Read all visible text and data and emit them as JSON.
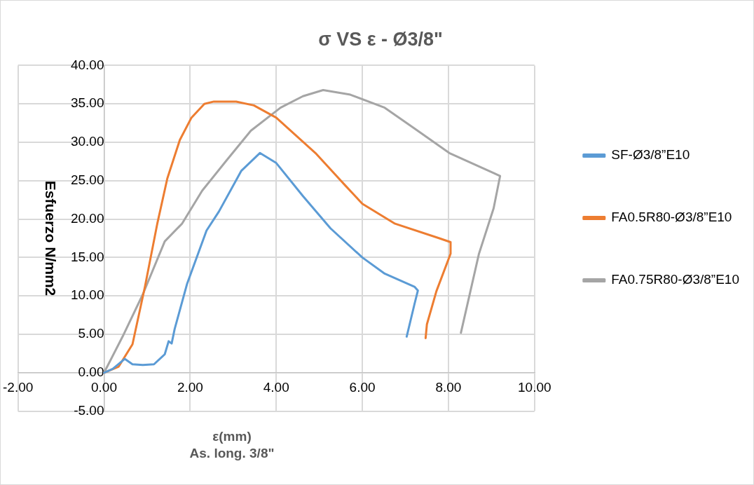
{
  "chart_data": {
    "type": "line",
    "title": "σ VS ε - Ø3/8\"",
    "xlabel": "ε(mm)",
    "ylabel": "Esfuerzo N/mm2",
    "annotations": [
      "As. long. 3/8\""
    ],
    "xlim": [
      -2,
      10
    ],
    "ylim": [
      -5,
      40
    ],
    "xticks": [
      {
        "value": -2,
        "label": "-2.00"
      },
      {
        "value": 0,
        "label": "0.00"
      },
      {
        "value": 2,
        "label": "2.00"
      },
      {
        "value": 4,
        "label": "4.00"
      },
      {
        "value": 6,
        "label": "6.00"
      },
      {
        "value": 8,
        "label": "8.00"
      },
      {
        "value": 10,
        "label": "10.00"
      }
    ],
    "yticks": [
      {
        "value": -5,
        "label": "-5.00"
      },
      {
        "value": 0,
        "label": "0.00"
      },
      {
        "value": 5,
        "label": "5.00"
      },
      {
        "value": 10,
        "label": "10.00"
      },
      {
        "value": 15,
        "label": "15.00"
      },
      {
        "value": 20,
        "label": "20.00"
      },
      {
        "value": 25,
        "label": "25.00"
      },
      {
        "value": 30,
        "label": "30.00"
      },
      {
        "value": 35,
        "label": "35.00"
      },
      {
        "value": 40,
        "label": "40.00"
      }
    ],
    "grid": true,
    "legend": "right",
    "marker": "none",
    "line_style": "solid",
    "series": [
      {
        "name": "SF-Ø3/8”E10",
        "color": "#5b9bd5",
        "x": [
          0,
          0.2,
          0.48,
          0.66,
          0.9,
          1.16,
          1.41,
          1.5,
          1.57,
          1.64,
          1.93,
          2.38,
          2.67,
          3.19,
          3.62,
          4.0,
          4.62,
          5.26,
          6.0,
          6.52,
          7.21,
          7.29,
          7.21,
          7.03
        ],
        "values": [
          0,
          0.5,
          1.8,
          1.1,
          1.0,
          1.1,
          2.4,
          4.1,
          3.8,
          5.7,
          11.6,
          18.5,
          21,
          26.3,
          28.6,
          27.3,
          23,
          18.8,
          15.0,
          12.9,
          11.2,
          10.7,
          8.9,
          4.7
        ]
      },
      {
        "name": "FA0.5R80-Ø3/8”E10",
        "color": "#ed7d31",
        "x": [
          0,
          0.34,
          0.66,
          0.95,
          1.24,
          1.47,
          1.76,
          2.03,
          2.33,
          2.55,
          3.07,
          3.48,
          4.0,
          4.91,
          5.6,
          6.0,
          6.76,
          7.79,
          8.05,
          8.05,
          7.72,
          7.5,
          7.47
        ],
        "values": [
          0,
          0.8,
          3.7,
          11.2,
          19.5,
          25.3,
          30.3,
          33.2,
          35,
          35.3,
          35.3,
          34.8,
          33.2,
          28.6,
          24.4,
          22.0,
          19.4,
          17.5,
          17.0,
          15.5,
          10.6,
          6.3,
          4.5
        ]
      },
      {
        "name": "FA0.75R80-Ø3/8”E10",
        "color": "#a5a5a5",
        "x": [
          0,
          0.43,
          0.9,
          1.41,
          1.81,
          2.28,
          2.84,
          3.41,
          4.1,
          4.62,
          5.09,
          5.72,
          6.52,
          7.21,
          8.02,
          9.05,
          9.2,
          9.05,
          8.71,
          8.29
        ],
        "values": [
          0,
          4.7,
          10.2,
          17.1,
          19.4,
          23.7,
          27.6,
          31.5,
          34.5,
          36,
          36.8,
          36.2,
          34.5,
          31.8,
          28.6,
          26.0,
          25.6,
          21.4,
          15.5,
          5.2
        ]
      }
    ]
  }
}
